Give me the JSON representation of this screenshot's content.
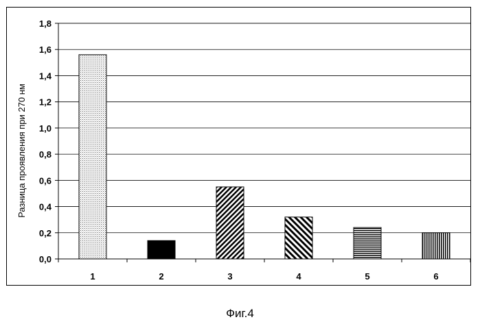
{
  "chart_data": {
    "type": "bar",
    "title": "",
    "xlabel": "",
    "ylabel": "Разница проявления при 270 нм",
    "categories": [
      "1",
      "2",
      "3",
      "4",
      "5",
      "6"
    ],
    "values": [
      1.56,
      0.14,
      0.55,
      0.32,
      0.24,
      0.2
    ],
    "ylim": [
      0,
      1.8
    ],
    "yticks": [
      0,
      0.2,
      0.4,
      0.6,
      0.8,
      1.0,
      1.2,
      1.4,
      1.6,
      1.8
    ],
    "ytick_labels": [
      "0,0",
      "0,2",
      "0,4",
      "0,6",
      "0,8",
      "1,0",
      "1,2",
      "1,4",
      "1,6",
      "1,8"
    ],
    "grid": true,
    "legend": "none",
    "bar_fills": [
      "dotted",
      "solid-black",
      "diagonal-dense",
      "diagonal-wide",
      "horizontal-stripes",
      "vertical-stripes"
    ]
  },
  "caption": "Фиг.4"
}
